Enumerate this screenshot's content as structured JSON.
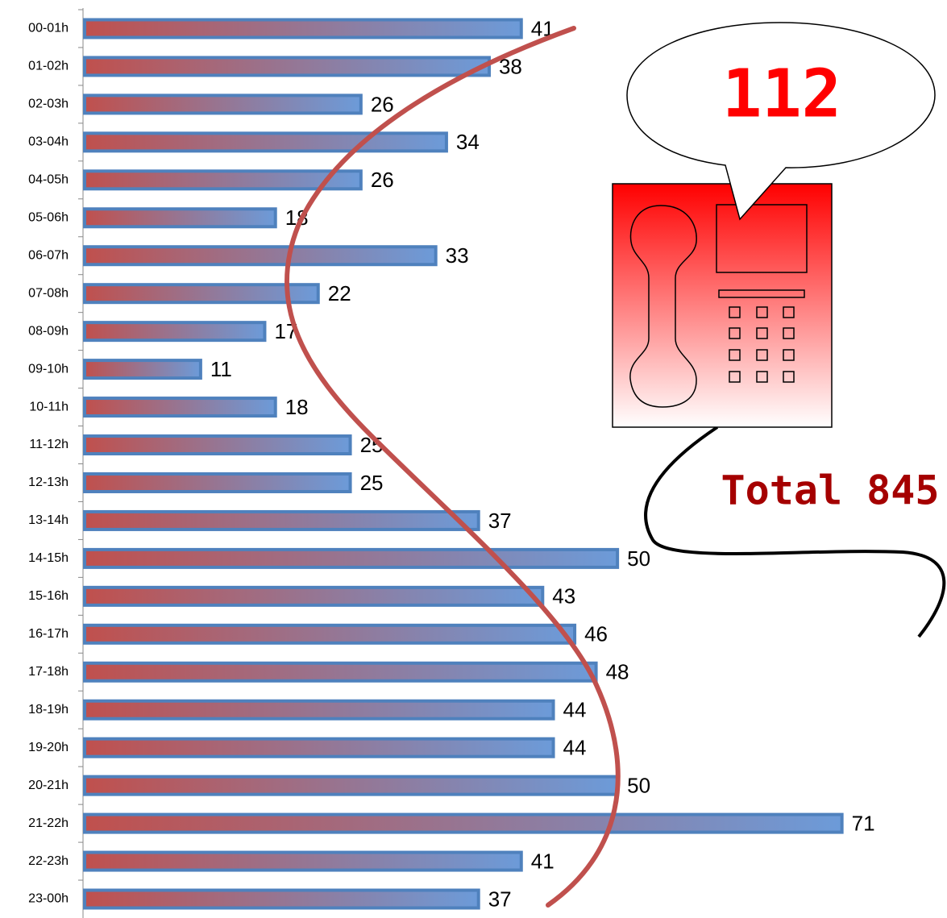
{
  "chart_data": {
    "type": "bar",
    "orientation": "horizontal",
    "categories": [
      "00-01h",
      "01-02h",
      "02-03h",
      "03-04h",
      "04-05h",
      "05-06h",
      "06-07h",
      "07-08h",
      "08-09h",
      "09-10h",
      "10-11h",
      "11-12h",
      "12-13h",
      "13-14h",
      "14-15h",
      "15-16h",
      "16-17h",
      "17-18h",
      "18-19h",
      "19-20h",
      "20-21h",
      "21-22h",
      "22-23h",
      "23-00h"
    ],
    "values": [
      41,
      38,
      26,
      34,
      26,
      18,
      33,
      22,
      17,
      11,
      18,
      25,
      25,
      37,
      50,
      43,
      46,
      48,
      44,
      44,
      50,
      71,
      41,
      37
    ],
    "colors": [
      "#c0504d",
      "#6c9bd9"
    ],
    "edge_color": "#4f81bd",
    "xlim": [
      0,
      80
    ],
    "annotations": [
      "112",
      "Total 845"
    ]
  }
}
